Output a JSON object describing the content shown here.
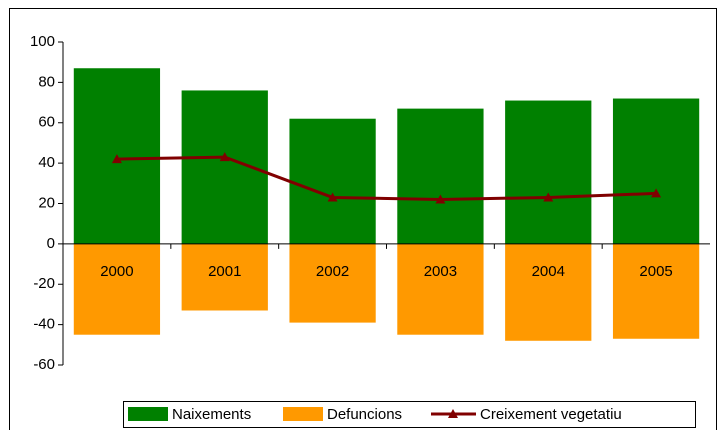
{
  "chart_data": {
    "type": "bar",
    "categories": [
      "2000",
      "2001",
      "2002",
      "2003",
      "2004",
      "2005"
    ],
    "series": [
      {
        "name": "Naixements",
        "type": "bar",
        "color": "#008000",
        "values": [
          87,
          76,
          62,
          67,
          71,
          72
        ]
      },
      {
        "name": "Defuncions",
        "type": "bar",
        "color": "#ff9900",
        "values": [
          -45,
          -33,
          -39,
          -45,
          -48,
          -47
        ]
      },
      {
        "name": "Creixement vegetatiu",
        "type": "line",
        "color": "#800000",
        "values": [
          42,
          43,
          23,
          22,
          23,
          25
        ]
      }
    ],
    "ylim": [
      -60,
      100
    ],
    "yticks": [
      -60,
      -40,
      -20,
      0,
      20,
      40,
      60,
      80,
      100
    ],
    "grid": false,
    "legend": "bottom"
  }
}
